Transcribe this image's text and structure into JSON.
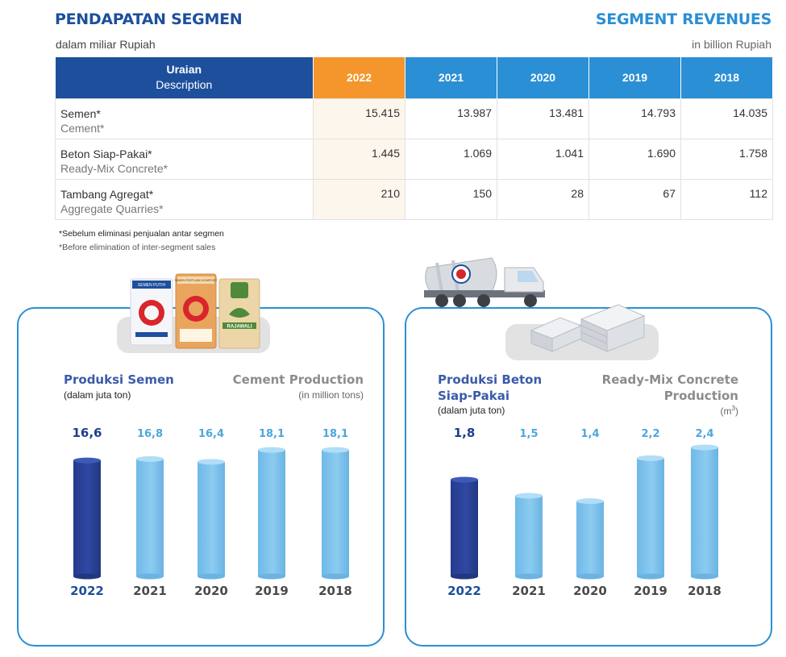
{
  "header": {
    "title_id": "PENDAPATAN SEGMEN",
    "title_en": "SEGMENT REVENUES",
    "unit_id": "dalam miliar Rupiah",
    "unit_en": "in billion Rupiah"
  },
  "table": {
    "header_id": "Uraian",
    "header_en": "Description",
    "years": [
      "2022",
      "2021",
      "2020",
      "2019",
      "2018"
    ],
    "rows": [
      {
        "label_id": "Semen*",
        "label_en": "Cement*",
        "values": [
          "15.415",
          "13.987",
          "13.481",
          "14.793",
          "14.035"
        ]
      },
      {
        "label_id": "Beton Siap-Pakai*",
        "label_en": "Ready-Mix Concrete*",
        "values": [
          "1.445",
          "1.069",
          "1.041",
          "1.690",
          "1.758"
        ]
      },
      {
        "label_id": "Tambang Agregat*",
        "label_en": "Aggregate Quarries*",
        "values": [
          "210",
          "150",
          "28",
          "67",
          "112"
        ]
      }
    ]
  },
  "footnotes": {
    "id": "*Sebelum eliminasi penjualan antar segmen",
    "en": "*Before elimination of inter-segment sales"
  },
  "images": {
    "cement_bags": [
      "SEMEN PUTIH",
      "SEMEN PORTLAND KOMPOSIT",
      "RAJAWALI"
    ]
  },
  "colors": {
    "primary": "#1d4f9c",
    "accent": "#2a8fd4",
    "highlight": "#f4962b",
    "bar_current": "#2f48a3",
    "bar_other": "#8ccbf0"
  },
  "cement_panel": {
    "title_id": "Produksi Semen",
    "unit_id": "(dalam juta ton)",
    "title_en": "Cement Production",
    "unit_en": "(in million tons)"
  },
  "concrete_panel": {
    "title_id_1": "Produksi Beton",
    "title_id_2": "Siap-Pakai",
    "unit_id": "(dalam juta ton)",
    "title_en_1": "Ready-Mix Concrete",
    "title_en_2": "Production",
    "unit_en": "(m"
  },
  "chart_data": [
    {
      "type": "bar",
      "categories": [
        "2022",
        "2021",
        "2020",
        "2019",
        "2018"
      ],
      "values": [
        16.6,
        16.8,
        16.4,
        18.1,
        18.1
      ],
      "labels": [
        "16,6",
        "16,8",
        "16,4",
        "18,1",
        "18,1"
      ],
      "title": "Produksi Semen",
      "ylim": [
        0,
        30
      ]
    },
    {
      "type": "bar",
      "categories": [
        "2022",
        "2021",
        "2020",
        "2019",
        "2018"
      ],
      "values": [
        1.8,
        1.5,
        1.4,
        2.2,
        2.4
      ],
      "labels": [
        "1,8",
        "1,5",
        "1,4",
        "2,2",
        "2,4"
      ],
      "title": "Produksi Beton Siap-Pakai",
      "ylim": [
        0,
        3.9
      ]
    }
  ]
}
